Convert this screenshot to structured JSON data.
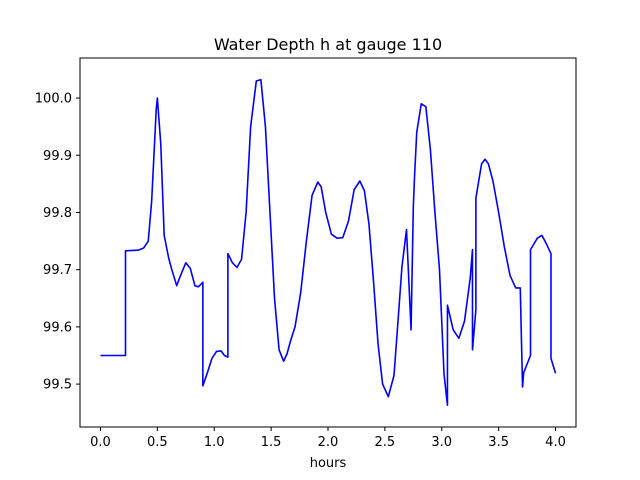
{
  "chart_data": {
    "type": "line",
    "title": "Water Depth h at gauge 110",
    "xlabel": "hours",
    "ylabel": "",
    "xlim": [
      -0.18,
      4.18
    ],
    "ylim": [
      99.425,
      100.07
    ],
    "grid": false,
    "x_ticks": [
      {
        "value": 0.0,
        "label": "0.0"
      },
      {
        "value": 0.5,
        "label": "0.5"
      },
      {
        "value": 1.0,
        "label": "1.0"
      },
      {
        "value": 1.5,
        "label": "1.5"
      },
      {
        "value": 2.0,
        "label": "2.0"
      },
      {
        "value": 2.5,
        "label": "2.5"
      },
      {
        "value": 3.0,
        "label": "3.0"
      },
      {
        "value": 3.5,
        "label": "3.5"
      },
      {
        "value": 4.0,
        "label": "4.0"
      }
    ],
    "y_ticks": [
      {
        "value": 99.5,
        "label": "99.5"
      },
      {
        "value": 99.6,
        "label": "99.6"
      },
      {
        "value": 99.7,
        "label": "99.7"
      },
      {
        "value": 99.8,
        "label": "99.8"
      },
      {
        "value": 99.9,
        "label": "99.9"
      },
      {
        "value": 100.0,
        "label": "100.0"
      }
    ],
    "series": [
      {
        "color": "#0000ff",
        "x": [
          0.0,
          0.22,
          0.22,
          0.33,
          0.38,
          0.42,
          0.45,
          0.49,
          0.5,
          0.53,
          0.56,
          0.6,
          0.63,
          0.67,
          0.7,
          0.75,
          0.79,
          0.83,
          0.86,
          0.9,
          0.9,
          0.94,
          0.98,
          1.02,
          1.06,
          1.09,
          1.12,
          1.12,
          1.16,
          1.2,
          1.24,
          1.28,
          1.32,
          1.37,
          1.41,
          1.45,
          1.49,
          1.53,
          1.57,
          1.61,
          1.64,
          1.67,
          1.71,
          1.76,
          1.81,
          1.86,
          1.91,
          1.94,
          1.98,
          2.03,
          2.08,
          2.13,
          2.18,
          2.23,
          2.28,
          2.32,
          2.36,
          2.4,
          2.44,
          2.48,
          2.53,
          2.58,
          2.61,
          2.65,
          2.69,
          2.73,
          2.75,
          2.75,
          2.75,
          2.76,
          2.78,
          2.82,
          2.86,
          2.9,
          2.94,
          2.98,
          3.02,
          3.02,
          3.05,
          3.05,
          3.1,
          3.15,
          3.2,
          3.25,
          3.27,
          3.27,
          3.3,
          3.3,
          3.3,
          3.35,
          3.38,
          3.41,
          3.45,
          3.5,
          3.55,
          3.6,
          3.65,
          3.69,
          3.71,
          3.72,
          3.78,
          3.78,
          3.84,
          3.88,
          3.92,
          3.96,
          3.96,
          4.0
        ],
        "y": [
          99.55,
          99.55,
          99.733,
          99.734,
          99.738,
          99.75,
          99.82,
          99.98,
          100.0,
          99.92,
          99.76,
          99.72,
          99.698,
          99.672,
          99.688,
          99.712,
          99.702,
          99.672,
          99.67,
          99.678,
          99.497,
          99.52,
          99.545,
          99.557,
          99.558,
          99.55,
          99.547,
          99.728,
          99.712,
          99.704,
          99.718,
          99.8,
          99.95,
          100.03,
          100.032,
          99.95,
          99.8,
          99.65,
          99.56,
          99.54,
          99.553,
          99.575,
          99.6,
          99.66,
          99.75,
          99.83,
          99.853,
          99.845,
          99.8,
          99.762,
          99.755,
          99.756,
          99.785,
          99.84,
          99.855,
          99.838,
          99.78,
          99.68,
          99.57,
          99.5,
          99.478,
          99.515,
          99.595,
          99.705,
          99.77,
          99.595,
          99.81,
          99.81,
          99.81,
          99.86,
          99.94,
          99.99,
          99.985,
          99.91,
          99.8,
          99.7,
          99.517,
          99.517,
          99.463,
          99.638,
          99.595,
          99.58,
          99.61,
          99.685,
          99.735,
          99.56,
          99.63,
          99.63,
          99.825,
          99.885,
          99.893,
          99.885,
          99.855,
          99.8,
          99.74,
          99.69,
          99.668,
          99.668,
          99.495,
          99.52,
          99.55,
          99.735,
          99.755,
          99.76,
          99.745,
          99.728,
          99.545,
          99.519
        ]
      }
    ]
  }
}
